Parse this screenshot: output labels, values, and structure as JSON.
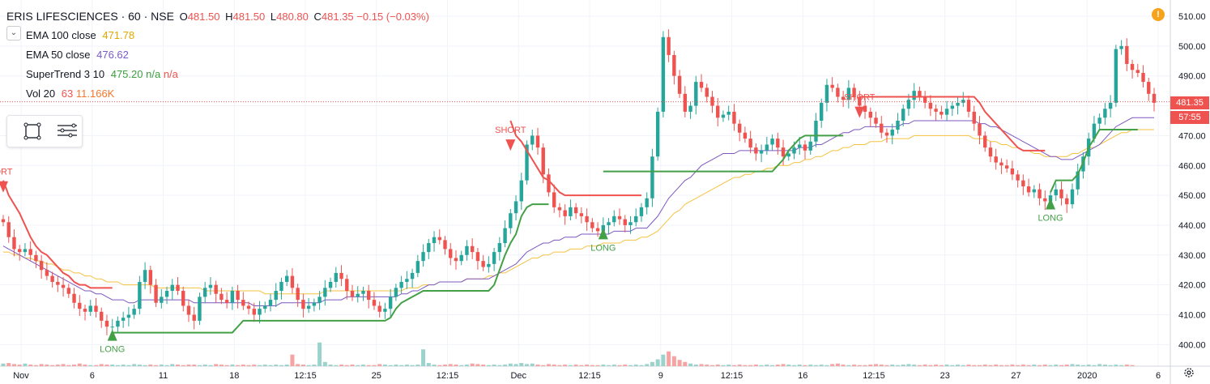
{
  "header": {
    "symbol": "ERIS LIFESCIENCES · 60 · NSE",
    "open_label": "O",
    "open": "481.50",
    "high_label": "H",
    "high": "481.50",
    "low_label": "L",
    "low": "480.80",
    "close_label": "C",
    "close": "481.35",
    "change": "−0.15 (−0.03%)"
  },
  "indicators": [
    {
      "name": "EMA 100 close",
      "values": [
        "471.78"
      ],
      "color": "#f0b400"
    },
    {
      "name": "EMA 50 close",
      "values": [
        "476.62"
      ],
      "color": "#7a5ac8"
    },
    {
      "name": "SuperTrend 3 10",
      "values": [
        "475.20",
        "n/a",
        "n/a"
      ],
      "colors": [
        "#3c9f40",
        "#3c9f40",
        "#ef5350"
      ]
    },
    {
      "name": "Vol 20",
      "values": [
        "63",
        "11.166K"
      ],
      "colors": [
        "#ef5350",
        "#f4762c"
      ]
    }
  ],
  "toolbar": {
    "collapse_icon": "chevron-down-icon",
    "tools": [
      "rectangle-select-icon",
      "object-tree-icon"
    ]
  },
  "price_tag": "481.35",
  "countdown": "57:55",
  "warning_icon": "!",
  "colors": {
    "up": "#26a69a",
    "down": "#ef5350",
    "supertrend_up": "#43a047",
    "supertrend_down": "#ef5350",
    "ema100": "#f5c242",
    "ema50": "#7e57c2",
    "vol_up": "#9bd3cc",
    "vol_down": "#f5a3a3"
  },
  "chart_data": {
    "type": "candlestick",
    "ylim": [
      397,
      512
    ],
    "y_ticks": [
      "510.00",
      "500.00",
      "490.00",
      "480.00",
      "470.00",
      "460.00",
      "450.00",
      "440.00",
      "430.00",
      "420.00",
      "410.00",
      "400.00"
    ],
    "x_ticks": [
      "Nov",
      "6",
      "11",
      "18",
      "12:15",
      "25",
      "12:15",
      "Dec",
      "12:15",
      "9",
      "12:15",
      "16",
      "12:15",
      "23",
      "27",
      "2020",
      "6"
    ],
    "last_price": 481.35,
    "series_close": [
      441,
      436,
      432,
      431,
      432,
      430,
      428,
      425,
      423,
      421,
      420,
      419,
      417,
      414,
      412,
      411,
      413,
      411,
      408,
      406,
      406,
      408,
      409,
      410,
      412,
      421,
      425,
      420,
      414,
      416,
      418,
      420,
      418,
      413,
      410,
      408,
      416,
      419,
      420,
      417,
      415,
      414,
      418,
      415,
      413,
      412,
      410,
      412,
      413,
      415,
      418,
      421,
      423,
      419,
      415,
      412,
      413,
      414,
      416,
      419,
      421,
      424,
      422,
      418,
      416,
      417,
      418,
      415,
      413,
      411,
      412,
      416,
      419,
      421,
      422,
      424,
      428,
      431,
      434,
      436,
      435,
      432,
      429,
      428,
      430,
      433,
      431,
      428,
      426,
      427,
      431,
      434,
      439,
      444,
      448,
      455,
      467,
      470,
      466,
      457,
      451,
      446,
      445,
      443,
      446,
      444,
      443,
      441,
      439,
      438,
      440,
      441,
      443,
      442,
      440,
      441,
      443,
      446,
      449,
      463,
      478,
      503,
      497,
      490,
      484,
      478,
      480,
      488,
      486,
      483,
      480,
      476,
      477,
      478,
      474,
      471,
      469,
      466,
      464,
      465,
      467,
      469,
      466,
      463,
      464,
      466,
      467,
      465,
      468,
      475,
      481,
      487,
      486,
      483,
      482,
      486,
      483,
      480,
      478,
      476,
      474,
      471,
      470,
      472,
      475,
      479,
      482,
      485,
      483,
      481,
      479,
      478,
      477,
      479,
      480,
      481,
      482,
      478,
      474,
      470,
      466,
      463,
      461,
      460,
      459,
      457,
      455,
      453,
      451,
      452,
      449,
      448,
      450,
      452,
      449,
      447,
      452,
      458,
      463,
      469,
      474,
      476,
      479,
      481,
      499,
      500,
      494,
      492,
      491,
      488,
      484,
      481
    ],
    "supertrend": {
      "down_segments": [
        {
          "x": 0,
          "y": [
            455,
            450,
            447,
            444,
            440,
            436,
            433,
            431,
            430,
            428,
            426,
            424,
            423,
            421,
            420,
            420,
            419,
            419,
            419,
            419,
            419
          ]
        },
        {
          "x": 93,
          "y": [
            475,
            470,
            468,
            465,
            462,
            459,
            456,
            455,
            453,
            451,
            450,
            450,
            450,
            450,
            450,
            450,
            450,
            450,
            450,
            450,
            450,
            450,
            450,
            450,
            450
          ]
        },
        {
          "x": 157,
          "y": [
            483,
            483,
            483,
            483,
            483,
            483,
            483,
            483,
            483,
            483,
            483,
            483,
            483,
            483,
            483,
            483,
            483,
            483,
            483,
            483,
            483,
            483,
            481,
            478,
            476,
            474,
            472,
            470,
            468,
            466,
            465,
            465,
            465,
            465,
            465
          ]
        }
      ],
      "up_segments": [
        {
          "x": 20,
          "y": [
            404,
            404,
            404,
            404,
            404,
            404,
            404,
            404,
            404,
            404,
            404,
            404,
            404,
            404,
            404,
            404,
            404,
            404,
            404,
            404,
            404,
            404,
            404,
            406,
            408,
            408,
            408,
            408,
            408,
            408,
            408,
            408,
            408,
            408,
            408,
            408,
            408,
            408,
            408,
            408,
            408,
            408,
            408,
            408,
            408,
            408,
            408,
            408,
            408,
            408,
            408,
            409,
            412,
            414,
            415,
            416,
            417,
            418,
            418,
            418,
            418,
            418,
            418,
            418,
            418,
            418,
            418,
            418,
            418,
            418,
            420,
            425,
            430,
            434,
            437,
            443,
            446,
            447,
            447,
            447,
            447
          ]
        },
        {
          "x": 110,
          "y": [
            458,
            458,
            458,
            458,
            458,
            458,
            458,
            458,
            458,
            458,
            458,
            458,
            458,
            458,
            458,
            458,
            458,
            458,
            458,
            458,
            458,
            458,
            458,
            458,
            458,
            458,
            458,
            458,
            458,
            458,
            458,
            458,
            460,
            462,
            465,
            467,
            469,
            470,
            470,
            470,
            470,
            470,
            470,
            470,
            470
          ]
        },
        {
          "x": 192,
          "y": [
            451,
            455,
            455,
            455,
            455,
            457,
            461,
            466,
            469,
            472,
            472,
            472,
            472,
            472,
            472,
            472,
            472
          ]
        }
      ],
      "labels": [
        {
          "text": "ORT",
          "x": 0,
          "y": 452,
          "dir": "down"
        },
        {
          "text": "SHORT",
          "x": 93,
          "y": 466,
          "dir": "down"
        },
        {
          "text": "LONG",
          "x": 20,
          "y": 404,
          "dir": "up"
        },
        {
          "text": "LONG",
          "x": 110,
          "y": 438,
          "dir": "up"
        },
        {
          "text": "SHORT",
          "x": 157,
          "y": 477,
          "dir": "down"
        },
        {
          "text": "LONG",
          "x": 192,
          "y": 448,
          "dir": "up"
        }
      ]
    },
    "ema50": [
      433,
      432,
      431,
      430,
      429,
      428,
      427,
      426,
      425,
      424,
      423,
      422,
      421,
      420,
      419,
      418,
      418,
      417,
      417,
      416,
      415,
      415,
      415,
      414,
      414,
      415,
      415,
      415,
      415,
      415,
      415,
      415,
      415,
      415,
      415,
      414,
      414,
      414,
      414,
      414,
      414,
      414,
      414,
      414,
      414,
      414,
      413,
      413,
      413,
      413,
      413,
      414,
      414,
      414,
      414,
      414,
      414,
      414,
      414,
      415,
      415,
      415,
      415,
      416,
      416,
      416,
      416,
      416,
      416,
      416,
      416,
      416,
      416,
      417,
      417,
      418,
      418,
      419,
      420,
      420,
      421,
      421,
      421,
      421,
      421,
      422,
      422,
      422,
      422,
      422,
      423,
      424,
      425,
      426,
      427,
      429,
      431,
      432,
      433,
      434,
      434,
      435,
      435,
      436,
      436,
      436,
      437,
      437,
      437,
      437,
      437,
      437,
      438,
      438,
      438,
      438,
      439,
      439,
      439,
      441,
      443,
      446,
      449,
      451,
      453,
      455,
      456,
      458,
      460,
      461,
      462,
      463,
      464,
      464,
      464,
      465,
      465,
      465,
      465,
      465,
      465,
      465,
      465,
      465,
      465,
      465,
      466,
      466,
      466,
      467,
      467,
      468,
      469,
      470,
      471,
      471,
      472,
      472,
      473,
      473,
      473,
      473,
      473,
      473,
      473,
      474,
      474,
      475,
      475,
      475,
      475,
      475,
      475,
      475,
      475,
      475,
      475,
      475,
      475,
      474,
      474,
      473,
      473,
      472,
      471,
      470,
      469,
      468,
      467,
      466,
      465,
      464,
      463,
      463,
      462,
      462,
      462,
      463,
      464,
      465,
      466,
      467,
      469,
      471,
      473,
      474,
      475,
      476,
      476,
      476,
      476,
      476
    ],
    "ema100": [
      431,
      431,
      430,
      430,
      429,
      429,
      428,
      428,
      427,
      427,
      426,
      425,
      425,
      424,
      424,
      423,
      423,
      422,
      422,
      421,
      421,
      421,
      420,
      420,
      420,
      420,
      420,
      420,
      419,
      419,
      419,
      419,
      419,
      419,
      419,
      419,
      419,
      418,
      418,
      418,
      418,
      418,
      418,
      418,
      418,
      418,
      418,
      418,
      417,
      417,
      417,
      417,
      417,
      417,
      417,
      417,
      417,
      417,
      417,
      418,
      418,
      418,
      418,
      418,
      418,
      418,
      418,
      418,
      418,
      418,
      418,
      418,
      418,
      418,
      419,
      419,
      419,
      420,
      420,
      420,
      421,
      421,
      421,
      421,
      421,
      422,
      422,
      422,
      422,
      423,
      423,
      424,
      424,
      425,
      426,
      427,
      428,
      429,
      429,
      430,
      430,
      431,
      431,
      431,
      432,
      432,
      432,
      433,
      433,
      433,
      434,
      434,
      434,
      434,
      435,
      435,
      435,
      436,
      436,
      437,
      438,
      440,
      442,
      444,
      445,
      447,
      448,
      449,
      450,
      451,
      452,
      453,
      454,
      455,
      456,
      456,
      457,
      457,
      458,
      458,
      459,
      459,
      460,
      460,
      460,
      461,
      461,
      462,
      462,
      463,
      463,
      464,
      465,
      465,
      466,
      466,
      467,
      467,
      467,
      468,
      468,
      468,
      469,
      469,
      469,
      469,
      469,
      470,
      470,
      470,
      470,
      470,
      470,
      470,
      470,
      470,
      470,
      470,
      469,
      469,
      469,
      468,
      468,
      467,
      467,
      466,
      466,
      465,
      465,
      464,
      464,
      463,
      463,
      463,
      463,
      463,
      464,
      464,
      465,
      466,
      466,
      467,
      468,
      469,
      470,
      471,
      471,
      472,
      472,
      472,
      472,
      472
    ],
    "volume_relative": [
      0.5,
      0.6,
      0.4,
      0.3,
      0.5,
      0.3,
      0.2,
      0.4,
      0.3,
      0.2,
      0.3,
      0.4,
      0.2,
      0.3,
      0.5,
      0.3,
      0.2,
      0.2,
      0.4,
      0.3,
      0.3,
      0.2,
      0.3,
      0.2,
      0.4,
      0.3,
      0.2,
      0.3,
      0.2,
      0.3,
      0.2,
      0.4,
      0.3,
      0.2,
      0.3,
      0.3,
      0.2,
      0.3,
      0.2,
      0.4,
      0.3,
      0.2,
      0.3,
      0.2,
      0.3,
      0.2,
      0.3,
      0.2,
      0.3,
      0.2,
      0.3,
      0.2,
      0.3,
      2.2,
      0.4,
      0.3,
      0.2,
      0.3,
      4.5,
      0.8,
      0.3,
      0.2,
      0.3,
      0.2,
      0.3,
      0.2,
      0.3,
      0.2,
      0.2,
      0.4,
      0.3,
      0.2,
      0.3,
      0.2,
      0.3,
      0.2,
      0.3,
      3.2,
      0.6,
      0.3,
      0.2,
      0.3,
      0.4,
      0.3,
      0.2,
      0.3,
      0.5,
      0.4,
      0.3,
      0.2,
      0.3,
      0.2,
      0.3,
      0.5,
      0.4,
      0.6,
      0.4,
      0.5,
      0.3,
      0.2,
      0.4,
      0.3,
      0.2,
      0.3,
      0.2,
      0.3,
      0.2,
      0.3,
      0.2,
      0.2,
      0.3,
      0.2,
      0.3,
      0.2,
      0.3,
      0.2,
      0.3,
      0.2,
      0.4,
      0.8,
      1.3,
      2.2,
      2.8,
      1.9,
      1.2,
      0.8,
      0.5,
      0.3,
      0.4,
      0.3,
      0.2,
      0.3,
      0.2,
      0.3,
      0.2,
      0.3,
      0.2,
      0.2,
      0.3,
      0.2,
      0.3,
      0.2,
      0.3,
      0.4,
      0.3,
      0.2,
      0.3,
      0.2,
      0.3,
      0.2,
      0.3,
      0.2,
      0.4,
      0.5,
      0.3,
      0.2,
      0.3,
      0.2,
      0.2,
      0.3,
      0.4,
      0.3,
      0.2,
      0.3,
      0.2,
      0.3,
      0.4,
      0.3,
      0.2,
      0.3,
      0.2,
      0.3,
      0.2,
      0.3,
      0.2,
      0.3,
      0.2,
      0.3,
      0.2,
      0.2,
      0.3,
      0.2,
      0.3,
      0.2,
      0.2,
      0.3,
      0.2,
      0.3,
      0.2,
      0.3,
      0.2,
      0.3,
      0.2,
      0.3,
      0.2,
      0.3,
      0.4,
      0.3,
      0.2,
      0.3,
      0.2,
      0.4,
      0.3,
      0.2,
      0.3,
      0.2,
      0.3,
      0.2
    ]
  }
}
